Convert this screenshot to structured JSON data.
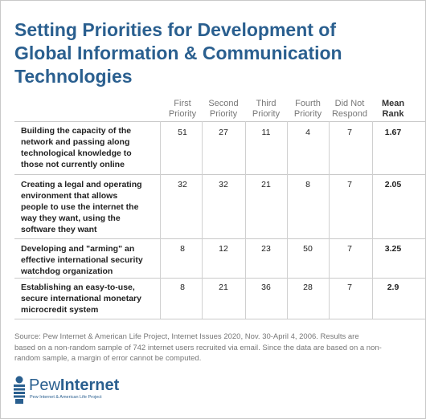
{
  "title_lines": [
    "Setting Priorities for Development of",
    "Global Information & Communication",
    "Technologies"
  ],
  "column_headers": [
    {
      "line1": "First",
      "line2": "Priority"
    },
    {
      "line1": "Second",
      "line2": "Priority"
    },
    {
      "line1": "Third",
      "line2": "Priority"
    },
    {
      "line1": "Fourth",
      "line2": "Priority"
    },
    {
      "line1": "Did Not",
      "line2": "Respond"
    },
    {
      "line1": "Mean",
      "line2": "Rank"
    }
  ],
  "chart_data": {
    "type": "table",
    "title": "Setting Priorities for Development of Global Information & Communication Technologies",
    "columns": [
      "First Priority",
      "Second Priority",
      "Third Priority",
      "Fourth Priority",
      "Did Not Respond",
      "Mean Rank"
    ],
    "rows": [
      {
        "label_lines": [
          "Building the capacity of the",
          "network and passing along",
          "technological knowledge to",
          "those not currently online"
        ],
        "values": [
          "51",
          "27",
          "11",
          "4",
          "7"
        ],
        "mean_rank": "1.67"
      },
      {
        "label_lines": [
          "Creating a legal and operating",
          "environment that allows",
          "people to use the internet the",
          "way they want, using the",
          "software they want"
        ],
        "values": [
          "32",
          "32",
          "21",
          "8",
          "7"
        ],
        "mean_rank": "2.05"
      },
      {
        "label_lines": [
          "Developing and \"arming\" an",
          "effective international security",
          "watchdog organization"
        ],
        "values": [
          "8",
          "12",
          "23",
          "50",
          "7"
        ],
        "mean_rank": "3.25"
      },
      {
        "label_lines": [
          "Establishing an easy-to-use,",
          "secure international monetary",
          "microcredit system"
        ],
        "values": [
          "8",
          "21",
          "36",
          "28",
          "7"
        ],
        "mean_rank": "2.9"
      }
    ]
  },
  "source_lines": [
    "Source: Pew Internet & American Life Project, Internet Issues 2020, Nov. 30-April 4, 2006. Results are",
    "based on a non-random sample of 742 internet users recruited via email. Since the data are based on a non-",
    "random sample, a margin of error cannot be computed."
  ],
  "logo": {
    "word_light": "Pew",
    "word_bold": "Internet",
    "subtitle": "Pew Internet & American Life Project"
  },
  "colors": {
    "title": "#2a5f8f",
    "header": "#777777",
    "rule": "#c9c9c9"
  }
}
